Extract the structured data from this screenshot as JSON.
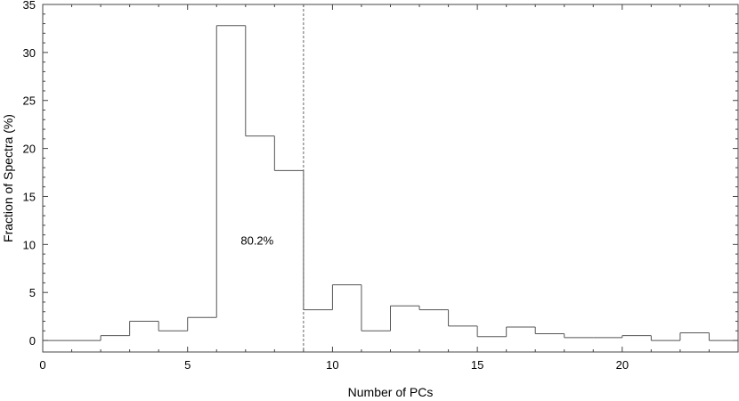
{
  "chart_data": {
    "type": "bar",
    "style": "step-histogram",
    "xlabel": "Number of PCs",
    "ylabel": "Fraction of Spectra  (%)",
    "xlim": [
      0,
      24
    ],
    "ylim": [
      -1.2,
      35
    ],
    "xticks": [
      0,
      5,
      10,
      15,
      20
    ],
    "yticks": [
      0,
      5,
      10,
      15,
      20,
      25,
      30,
      35
    ],
    "bin_edges": [
      0,
      1,
      2,
      3,
      4,
      5,
      6,
      7,
      8,
      9,
      10,
      11,
      12,
      13,
      14,
      15,
      16,
      17,
      18,
      19,
      20,
      21,
      22,
      23,
      24
    ],
    "values": [
      0,
      0,
      0.5,
      2.0,
      1.0,
      2.4,
      32.8,
      21.3,
      17.7,
      3.2,
      5.8,
      1.0,
      3.6,
      3.2,
      1.5,
      0.4,
      1.4,
      0.7,
      0.3,
      0.3,
      0.5,
      0.0,
      0.8,
      0.0
    ],
    "marker_line": {
      "x": 9,
      "style": "dashed"
    },
    "annotation": {
      "text": "80.2%",
      "x": 7.4,
      "y": 10
    },
    "grid": false,
    "color": "#555555"
  }
}
